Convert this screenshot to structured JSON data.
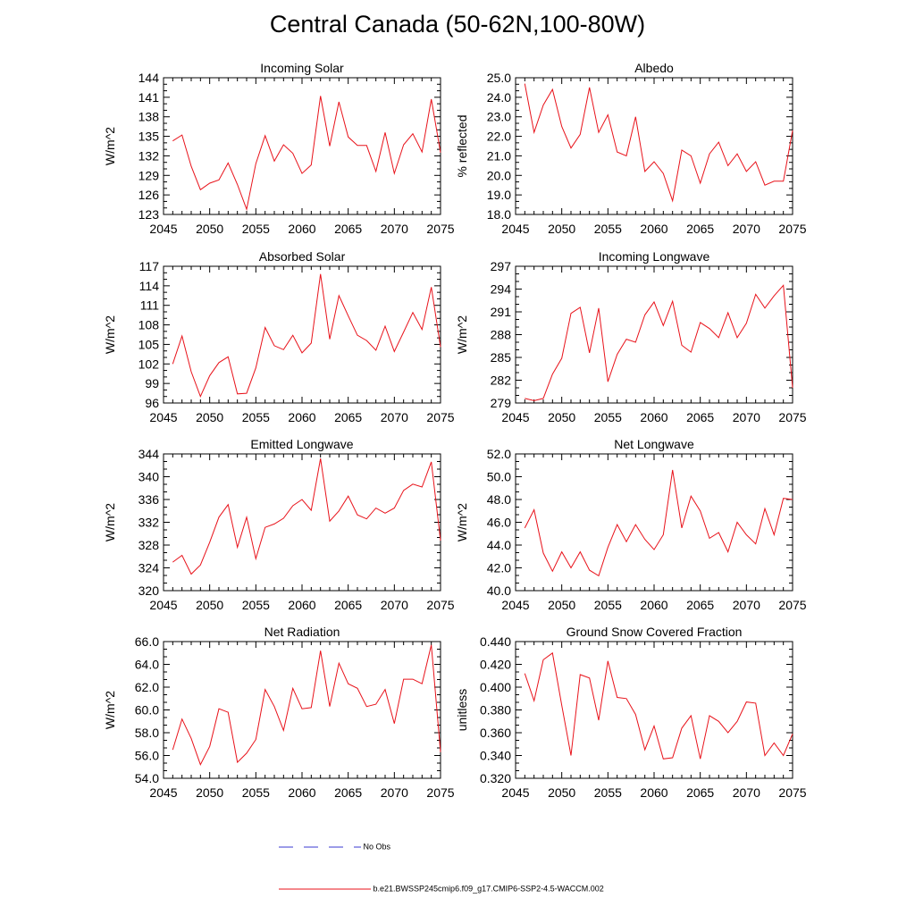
{
  "page_title": "Central Canada (50-62N,100-80W)",
  "legend": {
    "obs_label": "No Obs",
    "model_label": "b.e21.BWSSP245cmip6.f09_g17.CMIP6-SSP2-4.5-WACCM.002",
    "obs_color": "#3a3ad0",
    "model_color": "#e8121a"
  },
  "chart_data": [
    {
      "type": "line",
      "title": "Incoming Solar",
      "ylabel": "W/m^2",
      "xlim": [
        2045,
        2075
      ],
      "ylim": [
        123,
        144
      ],
      "yticks": [
        "123",
        "126",
        "129",
        "132",
        "135",
        "138",
        "141",
        "144"
      ],
      "xticks": [
        "2045",
        "2050",
        "2055",
        "2060",
        "2065",
        "2070",
        "2075"
      ],
      "series": [
        {
          "x": [
            2046,
            2047,
            2048,
            2049,
            2050,
            2051,
            2052,
            2053,
            2054,
            2055,
            2056,
            2057,
            2058,
            2059,
            2060,
            2061,
            2062,
            2063,
            2064,
            2065,
            2066,
            2067,
            2068,
            2069,
            2070,
            2071,
            2072,
            2073,
            2074,
            2075
          ],
          "values": [
            134.3,
            135.2,
            130.4,
            126.8,
            127.8,
            128.3,
            130.9,
            127.6,
            123.8,
            130.8,
            135.1,
            131.2,
            133.7,
            132.4,
            129.3,
            130.6,
            141.2,
            133.5,
            140.3,
            134.9,
            133.6,
            133.6,
            129.6,
            135.6,
            129.3,
            133.7,
            135.4,
            132.6,
            140.7,
            132.5
          ]
        }
      ]
    },
    {
      "type": "line",
      "title": "Albedo",
      "ylabel": "% reflected",
      "xlim": [
        2045,
        2075
      ],
      "ylim": [
        18.0,
        25.0
      ],
      "yticks": [
        "18.0",
        "19.0",
        "20.0",
        "21.0",
        "22.0",
        "23.0",
        "24.0",
        "25.0"
      ],
      "xticks": [
        "2045",
        "2050",
        "2055",
        "2060",
        "2065",
        "2070",
        "2075"
      ],
      "series": [
        {
          "x": [
            2046,
            2047,
            2048,
            2049,
            2050,
            2051,
            2052,
            2053,
            2054,
            2055,
            2056,
            2057,
            2058,
            2059,
            2060,
            2061,
            2062,
            2063,
            2064,
            2065,
            2066,
            2067,
            2068,
            2069,
            2070,
            2071,
            2072,
            2073,
            2074,
            2075
          ],
          "values": [
            24.7,
            22.2,
            23.6,
            24.4,
            22.5,
            21.4,
            22.1,
            24.5,
            22.2,
            23.1,
            21.2,
            21.0,
            23.0,
            20.2,
            20.7,
            20.1,
            18.7,
            21.3,
            21.0,
            19.6,
            21.1,
            21.7,
            20.5,
            21.1,
            20.2,
            20.7,
            19.5,
            19.7,
            19.7,
            22.3
          ]
        }
      ]
    },
    {
      "type": "line",
      "title": "Absorbed Solar",
      "ylabel": "W/m^2",
      "xlim": [
        2045,
        2075
      ],
      "ylim": [
        96,
        117
      ],
      "yticks": [
        "96",
        "99",
        "102",
        "105",
        "108",
        "111",
        "114",
        "117"
      ],
      "xticks": [
        "2045",
        "2050",
        "2055",
        "2060",
        "2065",
        "2070",
        "2075"
      ],
      "series": [
        {
          "x": [
            2046,
            2047,
            2048,
            2049,
            2050,
            2051,
            2052,
            2053,
            2054,
            2055,
            2056,
            2057,
            2058,
            2059,
            2060,
            2061,
            2062,
            2063,
            2064,
            2065,
            2066,
            2067,
            2068,
            2069,
            2070,
            2071,
            2072,
            2073,
            2074,
            2075
          ],
          "values": [
            102.0,
            106.3,
            100.8,
            97.0,
            100.2,
            102.2,
            103.1,
            97.4,
            97.5,
            101.4,
            107.6,
            104.8,
            104.2,
            106.4,
            103.7,
            105.2,
            115.8,
            105.8,
            112.5,
            109.4,
            106.4,
            105.6,
            104.1,
            107.8,
            103.9,
            106.9,
            109.9,
            107.3,
            113.8,
            104.6
          ]
        }
      ]
    },
    {
      "type": "line",
      "title": "Incoming Longwave",
      "ylabel": "W/m^2",
      "xlim": [
        2045,
        2075
      ],
      "ylim": [
        279,
        297
      ],
      "yticks": [
        "279",
        "282",
        "285",
        "288",
        "291",
        "294",
        "297"
      ],
      "xticks": [
        "2045",
        "2050",
        "2055",
        "2060",
        "2065",
        "2070",
        "2075"
      ],
      "series": [
        {
          "x": [
            2046,
            2047,
            2048,
            2049,
            2050,
            2051,
            2052,
            2053,
            2054,
            2055,
            2056,
            2057,
            2058,
            2059,
            2060,
            2061,
            2062,
            2063,
            2064,
            2065,
            2066,
            2067,
            2068,
            2069,
            2070,
            2071,
            2072,
            2073,
            2074,
            2075
          ],
          "values": [
            279.6,
            279.3,
            279.6,
            282.8,
            284.9,
            290.8,
            291.6,
            285.6,
            291.5,
            281.8,
            285.4,
            287.4,
            287.0,
            290.6,
            292.3,
            289.2,
            292.4,
            286.6,
            285.7,
            289.6,
            288.8,
            287.6,
            290.9,
            287.6,
            289.5,
            293.3,
            291.5,
            293.1,
            294.5,
            281.0
          ]
        }
      ]
    },
    {
      "type": "line",
      "title": "Emitted Longwave",
      "ylabel": "W/m^2",
      "xlim": [
        2045,
        2075
      ],
      "ylim": [
        320,
        344
      ],
      "yticks": [
        "320",
        "324",
        "328",
        "332",
        "336",
        "340",
        "344"
      ],
      "xticks": [
        "2045",
        "2050",
        "2055",
        "2060",
        "2065",
        "2070",
        "2075"
      ],
      "series": [
        {
          "x": [
            2046,
            2047,
            2048,
            2049,
            2050,
            2051,
            2052,
            2053,
            2054,
            2055,
            2056,
            2057,
            2058,
            2059,
            2060,
            2061,
            2062,
            2063,
            2064,
            2065,
            2066,
            2067,
            2068,
            2069,
            2070,
            2071,
            2072,
            2073,
            2074,
            2075
          ],
          "values": [
            325.0,
            326.2,
            322.9,
            324.5,
            328.5,
            332.9,
            335.1,
            327.6,
            332.9,
            325.6,
            331.1,
            331.7,
            332.7,
            334.9,
            336.0,
            334.1,
            343.2,
            332.2,
            334.0,
            336.6,
            333.3,
            332.6,
            334.5,
            333.6,
            334.5,
            337.6,
            338.7,
            338.2,
            342.6,
            328.8
          ]
        }
      ]
    },
    {
      "type": "line",
      "title": "Net Longwave",
      "ylabel": "W/m^2",
      "xlim": [
        2045,
        2075
      ],
      "ylim": [
        40.0,
        52.0
      ],
      "yticks": [
        "40.0",
        "42.0",
        "44.0",
        "46.0",
        "48.0",
        "50.0",
        "52.0"
      ],
      "xticks": [
        "2045",
        "2050",
        "2055",
        "2060",
        "2065",
        "2070",
        "2075"
      ],
      "series": [
        {
          "x": [
            2046,
            2047,
            2048,
            2049,
            2050,
            2051,
            2052,
            2053,
            2054,
            2055,
            2056,
            2057,
            2058,
            2059,
            2060,
            2061,
            2062,
            2063,
            2064,
            2065,
            2066,
            2067,
            2068,
            2069,
            2070,
            2071,
            2072,
            2073,
            2074,
            2075
          ],
          "values": [
            45.5,
            47.1,
            43.3,
            41.7,
            43.4,
            42.0,
            43.4,
            41.8,
            41.3,
            43.8,
            45.8,
            44.3,
            45.8,
            44.5,
            43.6,
            44.9,
            50.6,
            45.5,
            48.3,
            47.0,
            44.6,
            45.1,
            43.4,
            46.0,
            44.9,
            44.1,
            47.2,
            44.9,
            48.1,
            48.0
          ]
        }
      ]
    },
    {
      "type": "line",
      "title": "Net Radiation",
      "ylabel": "W/m^2",
      "xlim": [
        2045,
        2075
      ],
      "ylim": [
        54.0,
        66.0
      ],
      "yticks": [
        "54.0",
        "56.0",
        "58.0",
        "60.0",
        "62.0",
        "64.0",
        "66.0"
      ],
      "xticks": [
        "2045",
        "2050",
        "2055",
        "2060",
        "2065",
        "2070",
        "2075"
      ],
      "series": [
        {
          "x": [
            2046,
            2047,
            2048,
            2049,
            2050,
            2051,
            2052,
            2053,
            2054,
            2055,
            2056,
            2057,
            2058,
            2059,
            2060,
            2061,
            2062,
            2063,
            2064,
            2065,
            2066,
            2067,
            2068,
            2069,
            2070,
            2071,
            2072,
            2073,
            2074,
            2075
          ],
          "values": [
            56.5,
            59.2,
            57.5,
            55.2,
            56.8,
            60.1,
            59.8,
            55.4,
            56.2,
            57.4,
            61.8,
            60.3,
            58.2,
            61.9,
            60.1,
            60.2,
            65.2,
            60.3,
            64.1,
            62.3,
            61.9,
            60.3,
            60.5,
            61.8,
            58.8,
            62.7,
            62.7,
            62.3,
            65.7,
            56.3
          ]
        }
      ]
    },
    {
      "type": "line",
      "title": "Ground Snow Covered Fraction",
      "ylabel": "unitless",
      "xlim": [
        2045,
        2075
      ],
      "ylim": [
        0.32,
        0.44
      ],
      "yticks": [
        "0.320",
        "0.340",
        "0.360",
        "0.380",
        "0.400",
        "0.420",
        "0.440"
      ],
      "xticks": [
        "2045",
        "2050",
        "2055",
        "2060",
        "2065",
        "2070",
        "2075"
      ],
      "series": [
        {
          "x": [
            2046,
            2047,
            2048,
            2049,
            2050,
            2051,
            2052,
            2053,
            2054,
            2055,
            2056,
            2057,
            2058,
            2059,
            2060,
            2061,
            2062,
            2063,
            2064,
            2065,
            2066,
            2067,
            2068,
            2069,
            2070,
            2071,
            2072,
            2073,
            2074,
            2075
          ],
          "values": [
            0.412,
            0.388,
            0.424,
            0.43,
            0.384,
            0.34,
            0.411,
            0.408,
            0.371,
            0.423,
            0.391,
            0.39,
            0.376,
            0.345,
            0.366,
            0.337,
            0.338,
            0.364,
            0.375,
            0.337,
            0.375,
            0.37,
            0.36,
            0.37,
            0.387,
            0.386,
            0.34,
            0.351,
            0.34,
            0.359
          ]
        }
      ]
    }
  ]
}
